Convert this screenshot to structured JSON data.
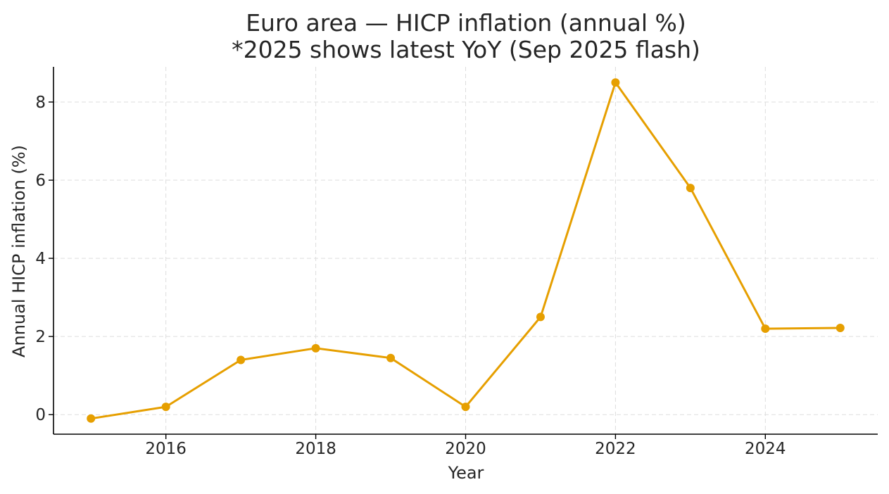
{
  "chart_data": {
    "type": "line",
    "title": "Euro area — HICP inflation (annual %)",
    "subtitle": "*2025 shows latest YoY (Sep 2025 flash)",
    "xlabel": "Year",
    "ylabel": "Annual HICP inflation (%)",
    "x": [
      2015,
      2016,
      2017,
      2018,
      2019,
      2020,
      2021,
      2022,
      2023,
      2024,
      2025
    ],
    "series": [
      {
        "name": "HICP inflation",
        "values": [
          -0.1,
          0.2,
          1.4,
          1.7,
          1.45,
          0.2,
          2.5,
          8.5,
          5.8,
          2.2,
          2.22
        ]
      }
    ],
    "xlim": [
      2014.5,
      2025.5
    ],
    "ylim": [
      -0.5,
      8.9
    ],
    "xticks": [
      2016,
      2018,
      2020,
      2022,
      2024
    ],
    "xtick_labels": [
      "2016",
      "2018",
      "2020",
      "2022",
      "2024"
    ],
    "yticks": [
      0,
      2,
      4,
      6,
      8
    ],
    "ytick_labels": [
      "0",
      "2",
      "4",
      "6",
      "8"
    ],
    "grid": true,
    "color": "#E69F00"
  }
}
